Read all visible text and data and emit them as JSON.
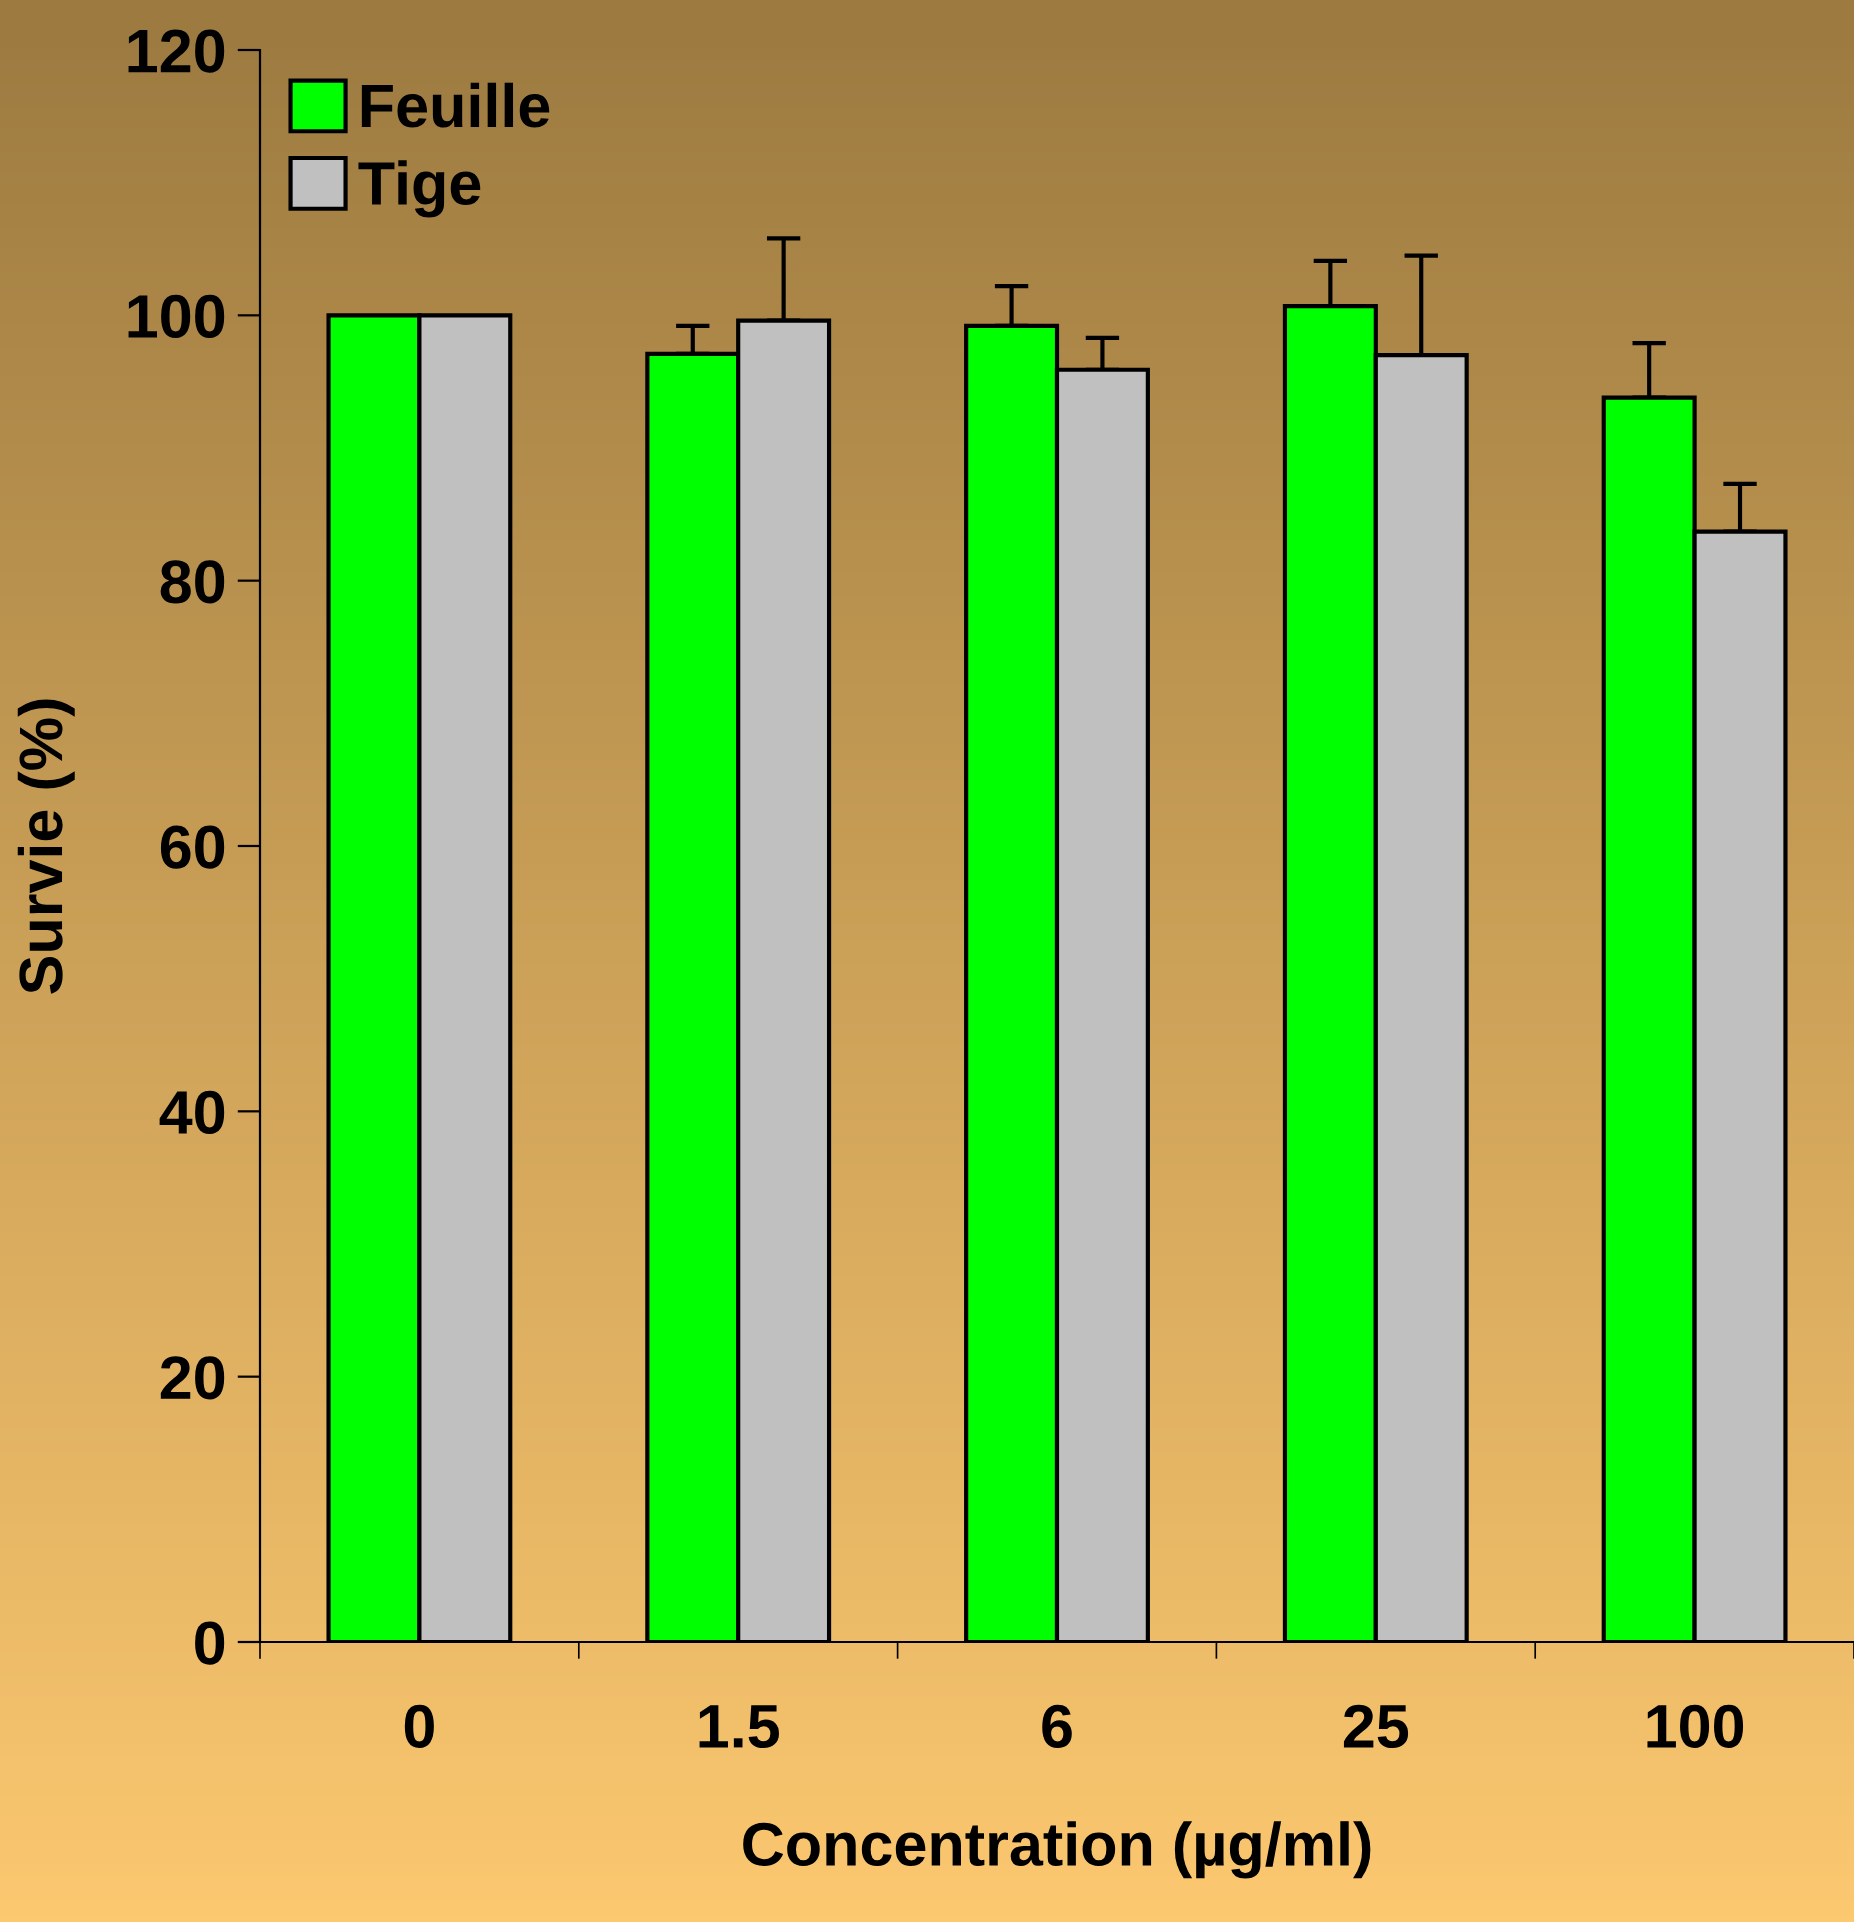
{
  "chart_data": {
    "type": "bar",
    "xlabel": "Concentration (µg/ml)",
    "ylabel": "Survie (%)",
    "categories": [
      "0",
      "1.5",
      "6",
      "25",
      "100"
    ],
    "series": [
      {
        "name": "Feuille",
        "color": "#00ff00",
        "values": [
          100,
          97.1,
          99.2,
          100.7,
          93.8
        ],
        "errors": [
          null,
          [
            97.1,
            99.2
          ],
          [
            99.2,
            102.2
          ],
          [
            100.7,
            104.1
          ],
          [
            93.8,
            97.9
          ]
        ]
      },
      {
        "name": "Tige",
        "color": "#c0c0c0",
        "values": [
          100,
          99.6,
          95.9,
          97.0,
          83.7
        ],
        "errors": [
          null,
          [
            99.6,
            105.8
          ],
          [
            95.9,
            98.3
          ],
          [
            97.0,
            104.5
          ],
          [
            83.7,
            87.3
          ]
        ]
      }
    ],
    "ylim": [
      0,
      120
    ],
    "yticks": [
      0,
      20,
      40,
      60,
      80,
      100,
      120
    ],
    "grid": false,
    "legend": "top left"
  }
}
